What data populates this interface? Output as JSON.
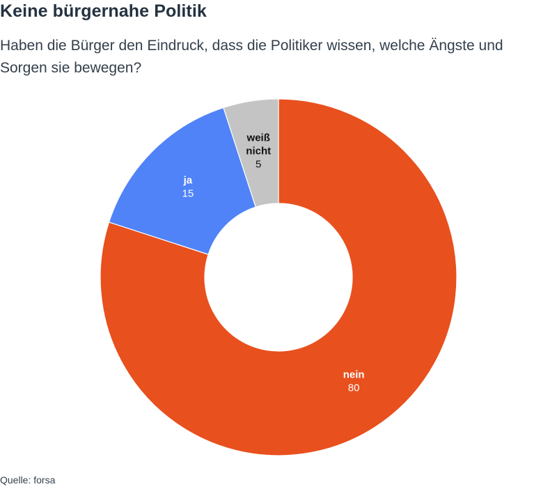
{
  "header": {
    "title": "Keine bürgernahe Politik",
    "subtitle": "Haben die Bürger den Eindruck, dass die Politiker wissen, welche Ängste und Sorgen sie bewegen?"
  },
  "chart_data": {
    "type": "pie",
    "variant": "donut",
    "title": "Keine bürgernahe Politik",
    "subtitle": "Haben die Bürger den Eindruck, dass die Politiker wissen, welche Ängste und Sorgen sie bewegen?",
    "slices": [
      {
        "label_lines": [
          "nein"
        ],
        "value": 80,
        "color": "#e8501e",
        "text_color": "#ffffff"
      },
      {
        "label_lines": [
          "ja"
        ],
        "value": 15,
        "color": "#4f83f7",
        "text_color": "#ffffff"
      },
      {
        "label_lines": [
          "weiß",
          "nicht"
        ],
        "value": 5,
        "color": "#c4c4c4",
        "text_color": "#111111"
      }
    ],
    "legend": "none",
    "source": "Quelle: forsa"
  },
  "footer": {
    "source": "Quelle: forsa"
  }
}
